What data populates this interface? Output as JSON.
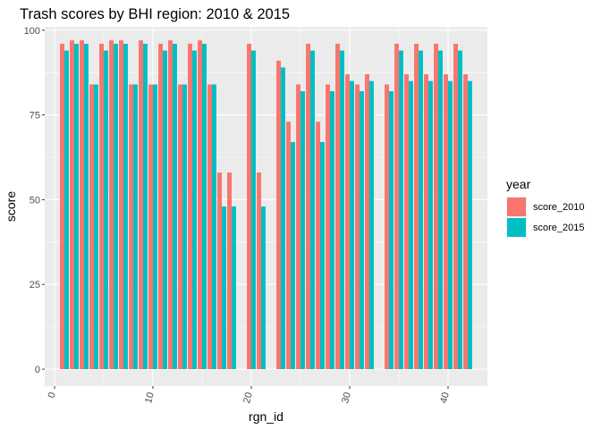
{
  "chart_data": {
    "type": "bar",
    "title": "Trash scores by BHI region: 2010 & 2015",
    "xlabel": "rgn_id",
    "ylabel": "score",
    "xlim": [
      -1,
      44
    ],
    "ylim": [
      -5,
      101
    ],
    "xticks": [
      0,
      10,
      20,
      30,
      40
    ],
    "yticks": [
      0,
      25,
      50,
      75,
      100
    ],
    "grid": true,
    "legend": {
      "title": "year",
      "placement": "right"
    },
    "series": [
      {
        "name": "score_2010",
        "color": "#F8766D",
        "x": [
          1,
          2,
          3,
          4,
          5,
          6,
          7,
          8,
          9,
          10,
          11,
          12,
          13,
          14,
          15,
          16,
          17,
          18,
          20,
          21,
          23,
          24,
          25,
          26,
          27,
          28,
          29,
          30,
          31,
          32,
          34,
          35,
          36,
          37,
          38,
          39,
          40,
          41,
          42
        ],
        "values": [
          96,
          97,
          97,
          84,
          96,
          97,
          97,
          84,
          97,
          84,
          96,
          97,
          84,
          96,
          97,
          84,
          58,
          58,
          96,
          58,
          91,
          73,
          84,
          96,
          73,
          84,
          96,
          87,
          84,
          87,
          84,
          96,
          87,
          96,
          87,
          96,
          87,
          96,
          87
        ]
      },
      {
        "name": "score_2015",
        "color": "#00BFC4",
        "x": [
          1,
          2,
          3,
          4,
          5,
          6,
          7,
          8,
          9,
          10,
          11,
          12,
          13,
          14,
          15,
          16,
          17,
          18,
          20,
          21,
          23,
          24,
          25,
          26,
          27,
          28,
          29,
          30,
          31,
          32,
          34,
          35,
          36,
          37,
          38,
          39,
          40,
          41,
          42
        ],
        "values": [
          94,
          96,
          96,
          84,
          94,
          96,
          96,
          84,
          96,
          84,
          94,
          96,
          84,
          94,
          96,
          84,
          48,
          48,
          94,
          48,
          89,
          67,
          82,
          94,
          67,
          82,
          94,
          85,
          82,
          85,
          82,
          94,
          85,
          94,
          85,
          94,
          85,
          94,
          85
        ]
      }
    ]
  }
}
